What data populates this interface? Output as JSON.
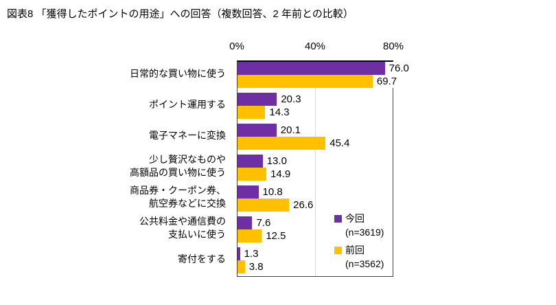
{
  "title": "図表8 「獲得したポイントの用途」への回答（複数回答、2 年前との比較）",
  "axis": {
    "ticks": [
      "0%",
      "40%",
      "80%"
    ]
  },
  "legend": {
    "current": {
      "label": "今回",
      "n": "(n=3619)"
    },
    "previous": {
      "label": "前回",
      "n": "(n=3562)"
    }
  },
  "colors": {
    "current": "#6E2FA3",
    "previous": "#FFC000",
    "gridline": "#d9d9d9"
  },
  "chart_data": {
    "type": "bar",
    "orientation": "horizontal",
    "title": "図表8 「獲得したポイントの用途」への回答（複数回答、2 年前との比較）",
    "categories": [
      "日常的な買い物に使う",
      "ポイント運用する",
      "電子マネーに変換",
      "少し贅沢なものや高額品の買い物に使う",
      "商品券・クーポン券、航空券などに交換",
      "公共料金や通信費の支払いに使う",
      "寄付をする"
    ],
    "category_label_lines": [
      [
        "日常的な買い物に使う"
      ],
      [
        "ポイント運用する"
      ],
      [
        "電子マネーに変換"
      ],
      [
        "少し贅沢なものや",
        "高額品の買い物に使う"
      ],
      [
        "商品券・クーポン券、",
        "航空券などに交換"
      ],
      [
        "公共料金や通信費の",
        "支払いに使う"
      ],
      [
        "寄付をする"
      ]
    ],
    "series": [
      {
        "name": "今回",
        "n": 3619,
        "color": "#6E2FA3",
        "values": [
          76.0,
          20.3,
          20.1,
          13.0,
          10.8,
          7.6,
          1.3
        ]
      },
      {
        "name": "前回",
        "n": 3562,
        "color": "#FFC000",
        "values": [
          69.7,
          14.3,
          45.4,
          14.9,
          26.6,
          12.5,
          3.8
        ]
      }
    ],
    "xlabel": "",
    "ylabel": "",
    "xlim": [
      0,
      80
    ],
    "tick_values": [
      0,
      40,
      80
    ],
    "grid": "vertical line at 40%",
    "value_labels": "outside end of bar, one decimal",
    "legend_position": "inside bottom-right"
  }
}
